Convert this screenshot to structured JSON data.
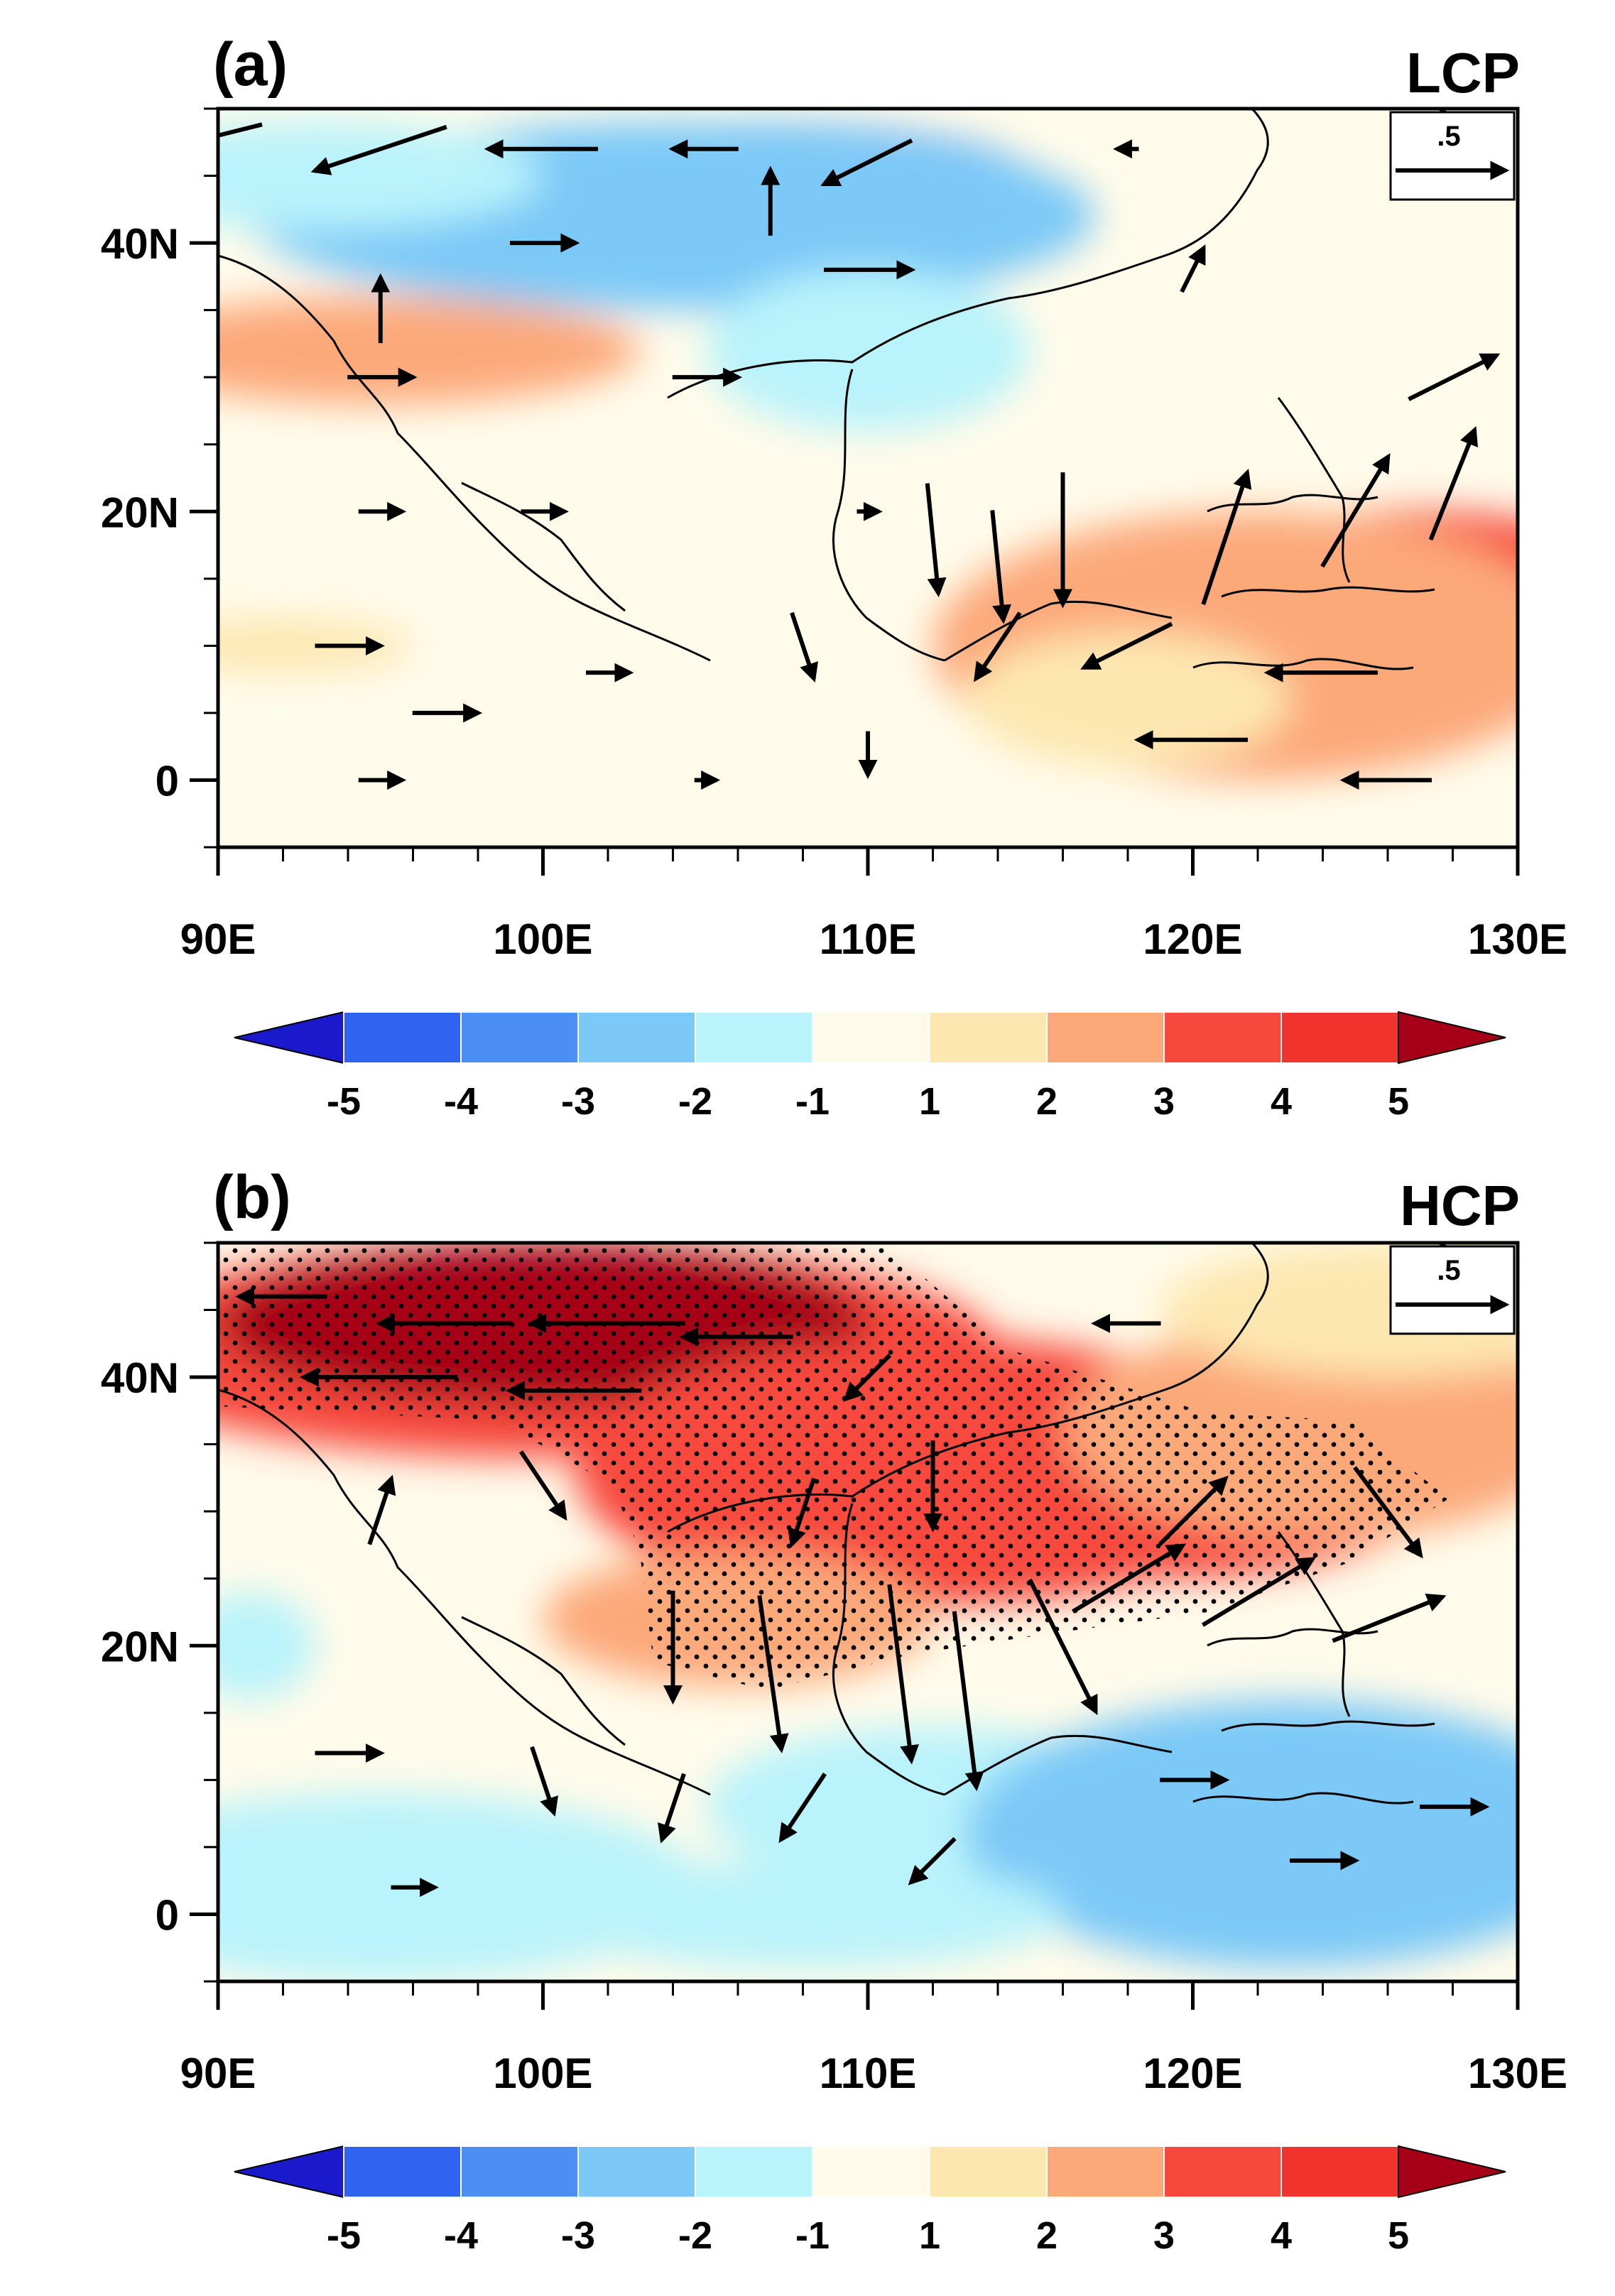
{
  "colorbar": {
    "levels": [
      "-5",
      "-4",
      "-3",
      "-2",
      "-1",
      "1",
      "2",
      "3",
      "4",
      "5"
    ],
    "colors": [
      "#1a1acc",
      "#2f63f0",
      "#4b8ff5",
      "#7cc9f7",
      "#b9f3fb",
      "#fffbea",
      "#fde7b0",
      "#fca97a",
      "#f7483e",
      "#f0332c",
      "#a50017"
    ]
  },
  "chart_data": [
    {
      "type": "heatmap",
      "panel_label": "(a)",
      "tag": "LCP",
      "xticks": [
        "90E",
        "100E",
        "110E",
        "120E",
        "130E"
      ],
      "yticks": [
        "40N",
        "20N",
        "0"
      ],
      "xlim": [
        90,
        130
      ],
      "ylim": [
        -5,
        50
      ],
      "reference_vector": ".5",
      "blobs": [
        {
          "lon": 106,
          "lat": 45,
          "rx": 9,
          "ry": 4,
          "value": -3.6
        },
        {
          "lon": 104,
          "lat": 42,
          "rx": 13,
          "ry": 7,
          "value": -2.2
        },
        {
          "lon": 93,
          "lat": 45,
          "rx": 7,
          "ry": 4,
          "value": -1.8
        },
        {
          "lon": 110,
          "lat": 32,
          "rx": 5,
          "ry": 6,
          "value": -1.6
        },
        {
          "lon": 95,
          "lat": 32,
          "rx": 5,
          "ry": 2.5,
          "value": 4.2
        },
        {
          "lon": 95,
          "lat": 32,
          "rx": 8,
          "ry": 4,
          "value": 2.4
        },
        {
          "lon": 127,
          "lat": 12,
          "rx": 8,
          "ry": 8,
          "value": 3.5
        },
        {
          "lon": 130,
          "lat": 13,
          "rx": 3,
          "ry": 4,
          "value": 4.4
        },
        {
          "lon": 122,
          "lat": 10,
          "rx": 10,
          "ry": 10,
          "value": 2.3
        },
        {
          "lon": 118,
          "lat": 6,
          "rx": 5,
          "ry": 5,
          "value": 1.7
        },
        {
          "lon": 92,
          "lat": 10,
          "rx": 4,
          "ry": 2,
          "value": 1.4
        }
      ],
      "winds": [
        {
          "lon": 90,
          "lat": 48,
          "u": -0.4,
          "v": -0.1
        },
        {
          "lon": 95,
          "lat": 47,
          "u": -0.6,
          "v": -0.2
        },
        {
          "lon": 100,
          "lat": 47,
          "u": -0.5,
          "v": 0.0
        },
        {
          "lon": 105,
          "lat": 47,
          "u": -0.3,
          "v": 0.0
        },
        {
          "lon": 107,
          "lat": 43,
          "u": 0.0,
          "v": 0.3
        },
        {
          "lon": 110,
          "lat": 46,
          "u": -0.4,
          "v": -0.2
        },
        {
          "lon": 118,
          "lat": 47,
          "u": -0.1,
          "v": 0.0
        },
        {
          "lon": 100,
          "lat": 40,
          "u": 0.3,
          "v": 0.0
        },
        {
          "lon": 110,
          "lat": 38,
          "u": 0.4,
          "v": 0.0
        },
        {
          "lon": 120,
          "lat": 38,
          "u": 0.1,
          "v": 0.2
        },
        {
          "lon": 95,
          "lat": 35,
          "u": 0.0,
          "v": 0.3
        },
        {
          "lon": 95,
          "lat": 30,
          "u": 0.3,
          "v": 0.0
        },
        {
          "lon": 105,
          "lat": 30,
          "u": 0.3,
          "v": 0.0
        },
        {
          "lon": 128,
          "lat": 30,
          "u": 0.4,
          "v": 0.2
        },
        {
          "lon": 95,
          "lat": 20,
          "u": 0.2,
          "v": 0.0
        },
        {
          "lon": 100,
          "lat": 20,
          "u": 0.2,
          "v": 0.0
        },
        {
          "lon": 110,
          "lat": 20,
          "u": 0.1,
          "v": 0.0
        },
        {
          "lon": 112,
          "lat": 18,
          "u": 0.05,
          "v": -0.5
        },
        {
          "lon": 114,
          "lat": 16,
          "u": 0.05,
          "v": -0.5
        },
        {
          "lon": 116,
          "lat": 18,
          "u": 0.0,
          "v": -0.6
        },
        {
          "lon": 121,
          "lat": 18,
          "u": 0.2,
          "v": 0.6
        },
        {
          "lon": 125,
          "lat": 20,
          "u": 0.3,
          "v": 0.5
        },
        {
          "lon": 128,
          "lat": 22,
          "u": 0.2,
          "v": 0.5
        },
        {
          "lon": 94,
          "lat": 10,
          "u": 0.3,
          "v": 0.0
        },
        {
          "lon": 97,
          "lat": 5,
          "u": 0.3,
          "v": 0.0
        },
        {
          "lon": 102,
          "lat": 8,
          "u": 0.2,
          "v": 0.0
        },
        {
          "lon": 108,
          "lat": 10,
          "u": 0.1,
          "v": -0.3
        },
        {
          "lon": 114,
          "lat": 10,
          "u": -0.2,
          "v": -0.3
        },
        {
          "lon": 118,
          "lat": 10,
          "u": -0.4,
          "v": -0.2
        },
        {
          "lon": 124,
          "lat": 8,
          "u": -0.5,
          "v": 0.0
        },
        {
          "lon": 120,
          "lat": 3,
          "u": -0.5,
          "v": 0.0
        },
        {
          "lon": 126,
          "lat": 0,
          "u": -0.4,
          "v": 0.0
        },
        {
          "lon": 95,
          "lat": 0,
          "u": 0.2,
          "v": 0.0
        },
        {
          "lon": 105,
          "lat": 0,
          "u": 0.1,
          "v": 0.0
        },
        {
          "lon": 110,
          "lat": 2,
          "u": 0.0,
          "v": -0.2
        }
      ]
    },
    {
      "type": "heatmap",
      "panel_label": "(b)",
      "tag": "HCP",
      "xticks": [
        "90E",
        "100E",
        "110E",
        "120E",
        "130E"
      ],
      "yticks": [
        "40N",
        "20N",
        "0"
      ],
      "xlim": [
        90,
        130
      ],
      "ylim": [
        -5,
        50
      ],
      "reference_vector": ".5",
      "blobs": [
        {
          "lon": 100,
          "lat": 42,
          "rx": 14,
          "ry": 8,
          "value": 3.8
        },
        {
          "lon": 100,
          "lat": 44,
          "rx": 10,
          "ry": 6,
          "value": 5.6
        },
        {
          "lon": 108,
          "lat": 34,
          "rx": 4,
          "ry": 10,
          "value": 5.4
        },
        {
          "lon": 112,
          "lat": 33,
          "rx": 11,
          "ry": 10,
          "value": 3.6
        },
        {
          "lon": 119,
          "lat": 33,
          "rx": 9,
          "ry": 8,
          "value": 3.1
        },
        {
          "lon": 124,
          "lat": 36,
          "rx": 8,
          "ry": 8,
          "value": 2.3
        },
        {
          "lon": 126,
          "lat": 45,
          "rx": 7,
          "ry": 5,
          "value": 1.5
        },
        {
          "lon": 106,
          "lat": 22,
          "rx": 6,
          "ry": 5,
          "value": 2.1
        },
        {
          "lon": 91,
          "lat": 20,
          "rx": 2,
          "ry": 4,
          "value": -1.6
        },
        {
          "lon": 95,
          "lat": 2,
          "rx": 10,
          "ry": 7,
          "value": -1.7
        },
        {
          "lon": 112,
          "lat": 8,
          "rx": 7,
          "ry": 6,
          "value": -1.8
        },
        {
          "lon": 123,
          "lat": 6,
          "rx": 10,
          "ry": 10,
          "value": -2.6
        },
        {
          "lon": 108,
          "lat": 0,
          "rx": 8,
          "ry": 4,
          "value": -1.6
        }
      ],
      "winds": [
        {
          "lon": 92,
          "lat": 46,
          "u": -0.4,
          "v": 0.0
        },
        {
          "lon": 97,
          "lat": 44,
          "u": -0.6,
          "v": 0.0
        },
        {
          "lon": 102,
          "lat": 44,
          "u": -0.7,
          "v": 0.0
        },
        {
          "lon": 106,
          "lat": 43,
          "u": -0.5,
          "v": 0.0
        },
        {
          "lon": 95,
          "lat": 40,
          "u": -0.7,
          "v": 0.0
        },
        {
          "lon": 101,
          "lat": 39,
          "u": -0.6,
          "v": 0.0
        },
        {
          "lon": 110,
          "lat": 40,
          "u": -0.2,
          "v": -0.2
        },
        {
          "lon": 118,
          "lat": 44,
          "u": -0.3,
          "v": 0.0
        },
        {
          "lon": 95,
          "lat": 30,
          "u": 0.1,
          "v": 0.3
        },
        {
          "lon": 100,
          "lat": 32,
          "u": 0.2,
          "v": -0.3
        },
        {
          "lon": 108,
          "lat": 30,
          "u": -0.1,
          "v": -0.3
        },
        {
          "lon": 112,
          "lat": 32,
          "u": 0.0,
          "v": -0.4
        },
        {
          "lon": 120,
          "lat": 30,
          "u": 0.3,
          "v": 0.3
        },
        {
          "lon": 126,
          "lat": 30,
          "u": 0.3,
          "v": -0.4
        },
        {
          "lon": 104,
          "lat": 20,
          "u": 0.0,
          "v": -0.5
        },
        {
          "lon": 107,
          "lat": 18,
          "u": 0.1,
          "v": -0.7
        },
        {
          "lon": 111,
          "lat": 18,
          "u": 0.1,
          "v": -0.8
        },
        {
          "lon": 113,
          "lat": 16,
          "u": 0.1,
          "v": -0.8
        },
        {
          "lon": 116,
          "lat": 20,
          "u": 0.3,
          "v": -0.6
        },
        {
          "lon": 118,
          "lat": 25,
          "u": 0.5,
          "v": 0.3
        },
        {
          "lon": 122,
          "lat": 24,
          "u": 0.5,
          "v": 0.3
        },
        {
          "lon": 126,
          "lat": 22,
          "u": 0.5,
          "v": 0.2
        },
        {
          "lon": 94,
          "lat": 12,
          "u": 0.3,
          "v": 0.0
        },
        {
          "lon": 100,
          "lat": 10,
          "u": 0.1,
          "v": -0.3
        },
        {
          "lon": 104,
          "lat": 8,
          "u": -0.1,
          "v": -0.3
        },
        {
          "lon": 108,
          "lat": 8,
          "u": -0.2,
          "v": -0.3
        },
        {
          "lon": 96,
          "lat": 2,
          "u": 0.2,
          "v": 0.0
        },
        {
          "lon": 112,
          "lat": 4,
          "u": -0.2,
          "v": -0.2
        },
        {
          "lon": 120,
          "lat": 10,
          "u": 0.3,
          "v": 0.0
        },
        {
          "lon": 124,
          "lat": 4,
          "u": 0.3,
          "v": 0.0
        },
        {
          "lon": 128,
          "lat": 8,
          "u": 0.3,
          "v": 0.0
        }
      ]
    }
  ]
}
